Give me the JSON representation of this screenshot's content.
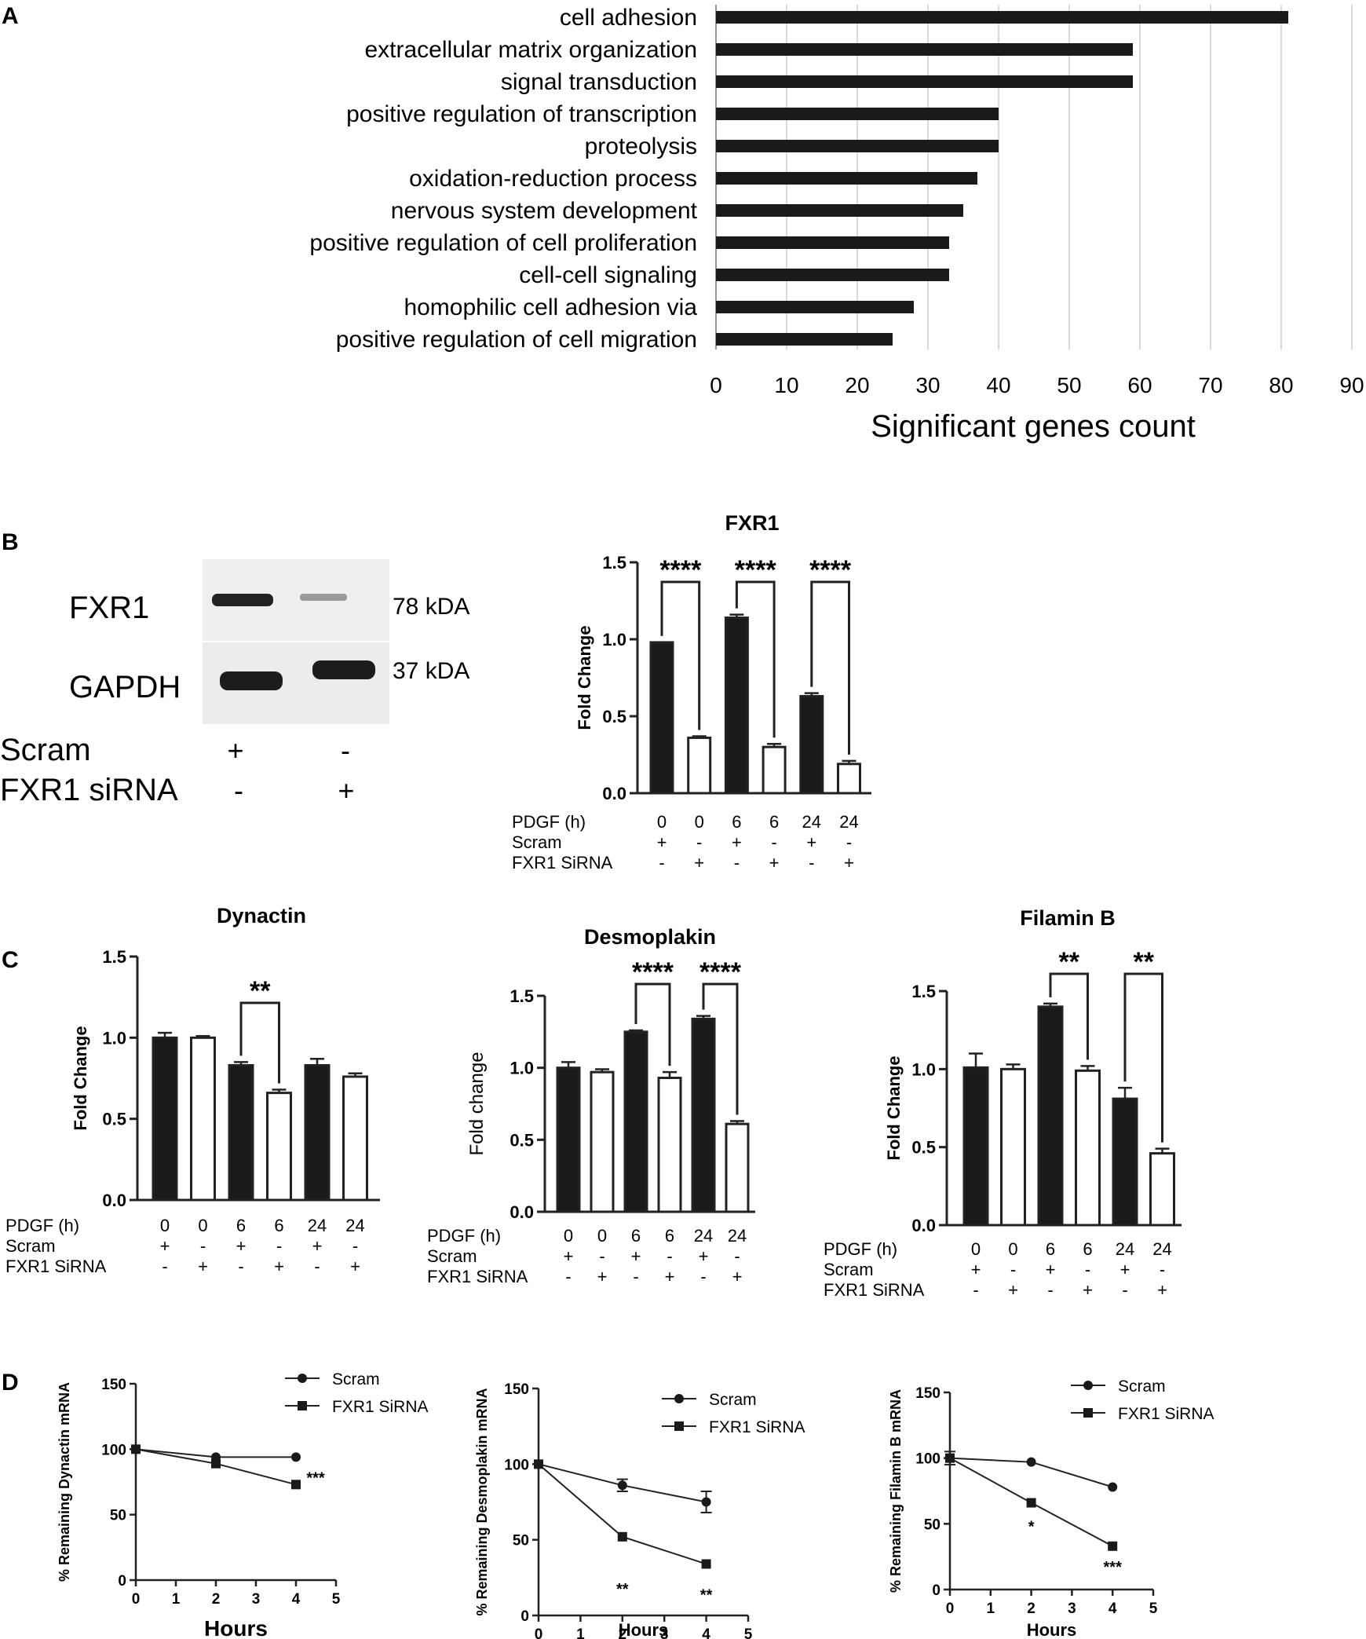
{
  "panel_labels": {
    "A": "A",
    "B": "B",
    "C": "C",
    "D": "D"
  },
  "colors": {
    "bar_dark": "#1a1a1a",
    "bar_open": "#ffffff",
    "grid": "#d9d9d9",
    "blot_bg": "#efefef",
    "blot_band": "#1c1c1c"
  },
  "blot": {
    "rows": [
      "FXR1",
      "GAPDH"
    ],
    "sizes": [
      "78 kDA",
      "37 kDA"
    ],
    "cond_labels": [
      "Scram",
      "FXR1 siRNA"
    ],
    "lane1": [
      "+",
      "-"
    ],
    "lane2": [
      "-",
      "+"
    ]
  },
  "conditions": {
    "row_labels": [
      "PDGF (h)",
      "Scram",
      "FXR1 SiRNA"
    ],
    "pdgf": [
      "0",
      "0",
      "6",
      "6",
      "24",
      "24"
    ],
    "scram": [
      "+",
      "-",
      "+",
      "-",
      "+",
      "-"
    ],
    "sirna": [
      "-",
      "+",
      "-",
      "+",
      "-",
      "+"
    ]
  },
  "chart_data": [
    {
      "id": "A",
      "type": "bar",
      "orientation": "horizontal",
      "categories": [
        "cell adhesion",
        "extracellular matrix organization",
        "signal transduction",
        "positive regulation of transcription",
        "proteolysis",
        "oxidation-reduction process",
        "nervous system development",
        "positive regulation of cell proliferation",
        "cell-cell signaling",
        "homophilic cell adhesion via",
        "positive regulation of cell migration"
      ],
      "values": [
        81,
        59,
        59,
        40,
        40,
        37,
        35,
        33,
        33,
        28,
        25
      ],
      "xlabel": "Significant genes count",
      "xlim": [
        0,
        90
      ],
      "xticks": [
        "0",
        "10",
        "20",
        "30",
        "40",
        "50",
        "60",
        "70",
        "80",
        "90"
      ],
      "grid": true
    },
    {
      "id": "B-FXR1",
      "type": "bar",
      "title": "FXR1",
      "ylabel": "Fold Change",
      "ylim": [
        0,
        1.5
      ],
      "yticks": [
        "0.0",
        "0.5",
        "1.0",
        "1.5"
      ],
      "values": [
        0.98,
        0.36,
        1.14,
        0.3,
        0.63,
        0.19
      ],
      "errors": [
        0.0,
        0.01,
        0.02,
        0.02,
        0.02,
        0.02
      ],
      "fills": [
        "dark",
        "open",
        "dark",
        "open",
        "dark",
        "open"
      ],
      "significance": [
        {
          "pair": [
            0,
            1
          ],
          "label": "****"
        },
        {
          "pair": [
            2,
            3
          ],
          "label": "****"
        },
        {
          "pair": [
            4,
            5
          ],
          "label": "****"
        }
      ]
    },
    {
      "id": "C-Dynactin",
      "type": "bar",
      "title": "Dynactin",
      "ylabel": "Fold Change",
      "ylim": [
        0,
        1.5
      ],
      "yticks": [
        "0.0",
        "0.5",
        "1.0",
        "1.5"
      ],
      "values": [
        1.0,
        1.0,
        0.83,
        0.66,
        0.83,
        0.76
      ],
      "errors": [
        0.03,
        0.01,
        0.02,
        0.02,
        0.04,
        0.02
      ],
      "fills": [
        "dark",
        "open",
        "dark",
        "open",
        "dark",
        "open"
      ],
      "significance": [
        {
          "pair": [
            2,
            3
          ],
          "label": "**"
        }
      ]
    },
    {
      "id": "C-Desmoplakin",
      "type": "bar",
      "title": "Desmoplakin",
      "ylabel": "Fold change",
      "ylim": [
        0,
        1.5
      ],
      "yticks": [
        "0.0",
        "0.5",
        "1.0",
        "1.5"
      ],
      "values": [
        1.0,
        0.97,
        1.25,
        0.93,
        1.34,
        0.61
      ],
      "errors": [
        0.04,
        0.02,
        0.01,
        0.04,
        0.02,
        0.02
      ],
      "fills": [
        "dark",
        "open",
        "dark",
        "open",
        "dark",
        "open"
      ],
      "significance": [
        {
          "pair": [
            2,
            3
          ],
          "label": "****"
        },
        {
          "pair": [
            4,
            5
          ],
          "label": "****"
        }
      ]
    },
    {
      "id": "C-FilaminB",
      "type": "bar",
      "title": "Filamin B",
      "ylabel": "Fold Change",
      "ylim": [
        0,
        1.5
      ],
      "yticks": [
        "0.0",
        "0.5",
        "1.0",
        "1.5"
      ],
      "values": [
        1.01,
        1.0,
        1.4,
        0.99,
        0.81,
        0.46
      ],
      "errors": [
        0.09,
        0.03,
        0.02,
        0.03,
        0.07,
        0.03
      ],
      "fills": [
        "dark",
        "open",
        "dark",
        "open",
        "dark",
        "open"
      ],
      "significance": [
        {
          "pair": [
            2,
            3
          ],
          "label": "**"
        },
        {
          "pair": [
            4,
            5
          ],
          "label": "**"
        }
      ]
    },
    {
      "id": "D-Dynactin",
      "type": "line",
      "xlabel": "Hours",
      "ylabel": "% Remaining Dynactin mRNA",
      "xlim": [
        0,
        5
      ],
      "ylim": [
        0,
        150
      ],
      "xticks": [
        "0",
        "1",
        "2",
        "3",
        "4",
        "5"
      ],
      "yticks": [
        "0",
        "50",
        "100",
        "150"
      ],
      "series": [
        {
          "name": "Scram",
          "marker": "circle",
          "x": [
            0,
            2,
            4
          ],
          "y": [
            100,
            94,
            94
          ],
          "err": [
            0,
            0,
            0
          ]
        },
        {
          "name": "FXR1 SiRNA",
          "marker": "square",
          "x": [
            0,
            2,
            4
          ],
          "y": [
            100,
            89,
            73
          ],
          "err": [
            0,
            0,
            0
          ]
        }
      ],
      "annotations": [
        {
          "x": 4,
          "y": 73,
          "text": "***"
        }
      ],
      "legend": "top-right"
    },
    {
      "id": "D-Desmoplakin",
      "type": "line",
      "xlabel": "Hours",
      "ylabel": "% Remaining Desmoplakin mRNA",
      "xlim": [
        0,
        5
      ],
      "ylim": [
        0,
        150
      ],
      "xticks": [
        "0",
        "1",
        "2",
        "3",
        "4",
        "5"
      ],
      "yticks": [
        "0",
        "50",
        "100",
        "150"
      ],
      "series": [
        {
          "name": "Scram",
          "marker": "circle",
          "x": [
            0,
            2,
            4
          ],
          "y": [
            100,
            86,
            75
          ],
          "err": [
            0,
            4,
            7
          ]
        },
        {
          "name": "FXR1 SiRNA",
          "marker": "square",
          "x": [
            0,
            2,
            4
          ],
          "y": [
            100,
            52,
            34
          ],
          "err": [
            0,
            0,
            0
          ]
        }
      ],
      "annotations": [
        {
          "x": 2,
          "y": 14,
          "text": "**"
        },
        {
          "x": 4,
          "y": 10,
          "text": "**"
        }
      ],
      "legend": "top-right"
    },
    {
      "id": "D-FilaminB",
      "type": "line",
      "xlabel": "Hours",
      "ylabel": "% Remaining Filamin B mRNA",
      "xlim": [
        0,
        5
      ],
      "ylim": [
        0,
        150
      ],
      "xticks": [
        "0",
        "1",
        "2",
        "3",
        "4",
        "5"
      ],
      "yticks": [
        "0",
        "50",
        "100",
        "150"
      ],
      "series": [
        {
          "name": "Scram",
          "marker": "circle",
          "x": [
            0,
            2,
            4
          ],
          "y": [
            100,
            97,
            78
          ],
          "err": [
            5,
            0,
            0
          ]
        },
        {
          "name": "FXR1 SiRNA",
          "marker": "square",
          "x": [
            0,
            2,
            4
          ],
          "y": [
            100,
            66,
            33
          ],
          "err": [
            0,
            0,
            0
          ]
        }
      ],
      "annotations": [
        {
          "x": 2,
          "y": 44,
          "text": "*"
        },
        {
          "x": 4,
          "y": 13,
          "text": "***"
        }
      ],
      "legend": "top-right"
    }
  ]
}
